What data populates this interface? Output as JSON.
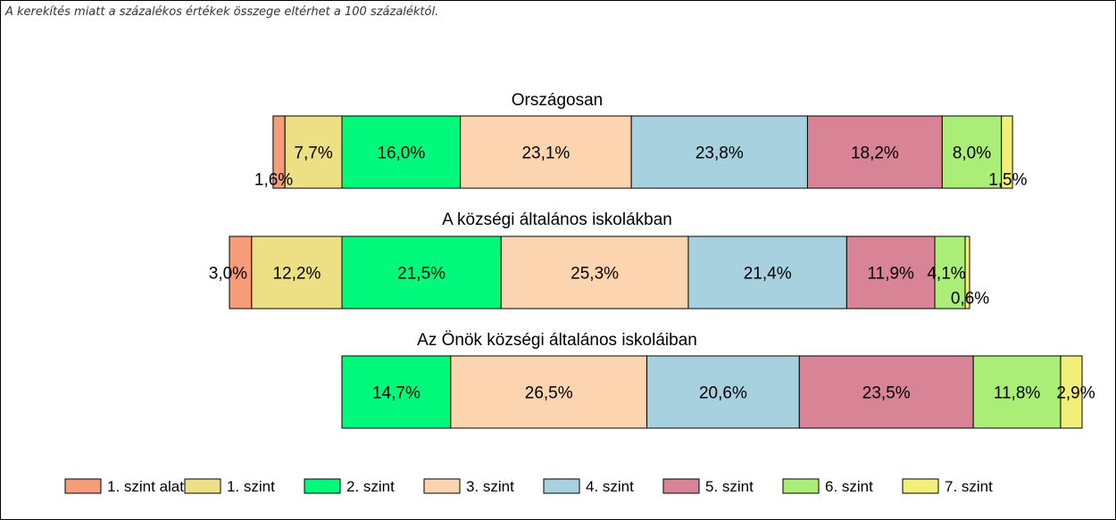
{
  "note": "A kerekítés miatt a  százalékos értékek összege eltérhet a 100 százaléktól.",
  "chart_data": {
    "type": "bar",
    "orientation": "horizontal-stacked",
    "legend_position": "bottom",
    "grid": false,
    "colors": [
      "#F79B78",
      "#EDE084",
      "#00F97A",
      "#FCD5B0",
      "#A8D1E0",
      "#D88396",
      "#AAEE77",
      "#F2EE7A"
    ],
    "series_names": [
      "1. szint alatti",
      "1. szint",
      "2. szint",
      "3. szint",
      "4. szint",
      "5. szint",
      "6. szint",
      "7. szint"
    ],
    "groups": [
      {
        "title": "Országosan",
        "values": [
          1.6,
          7.7,
          16.0,
          23.1,
          23.8,
          18.2,
          8.0,
          1.5
        ],
        "labels": [
          "1,6%",
          "7,7%",
          "16,0%",
          "23,1%",
          "23,8%",
          "18,2%",
          "8,0%",
          "1,5%"
        ]
      },
      {
        "title": "A községi általános iskolákban",
        "values": [
          3.0,
          12.2,
          21.5,
          25.3,
          21.4,
          11.9,
          4.1,
          0.6
        ],
        "labels": [
          "3,0%",
          "12,2%",
          "21,5%",
          "25,3%",
          "21,4%",
          "11,9%",
          "4,1%",
          "0,6%"
        ]
      },
      {
        "title": "Az Önök községi általános iskoláiban",
        "values": [
          0,
          0,
          14.7,
          26.5,
          20.6,
          23.5,
          11.8,
          2.9
        ],
        "labels": [
          "",
          "",
          "14,7%",
          "26,5%",
          "20,6%",
          "23,5%",
          "11,8%",
          "2,9%"
        ]
      }
    ]
  }
}
